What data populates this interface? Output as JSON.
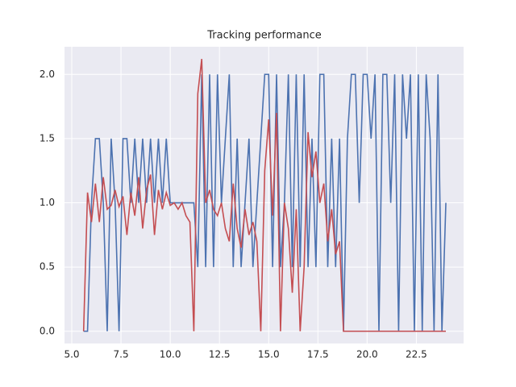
{
  "chart_data": {
    "type": "line",
    "title": "Tracking performance",
    "x": [
      5.6,
      5.8,
      6.0,
      6.2,
      6.4,
      6.6,
      6.8,
      7.0,
      7.2,
      7.4,
      7.6,
      7.8,
      8.0,
      8.2,
      8.4,
      8.6,
      8.8,
      9.0,
      9.2,
      9.4,
      9.6,
      9.8,
      10.0,
      10.2,
      10.4,
      10.6,
      10.8,
      11.0,
      11.2,
      11.4,
      11.6,
      11.8,
      12.0,
      12.2,
      12.4,
      12.6,
      12.8,
      13.0,
      13.2,
      13.4,
      13.6,
      13.8,
      14.0,
      14.2,
      14.4,
      14.6,
      14.8,
      15.0,
      15.2,
      15.4,
      15.6,
      15.8,
      16.0,
      16.2,
      16.4,
      16.6,
      16.8,
      17.0,
      17.2,
      17.4,
      17.6,
      17.8,
      18.0,
      18.2,
      18.4,
      18.6,
      18.8,
      19.0,
      19.2,
      19.4,
      19.6,
      19.8,
      20.0,
      20.2,
      20.4,
      20.6,
      20.8,
      21.0,
      21.2,
      21.4,
      21.6,
      21.8,
      22.0,
      22.2,
      22.4,
      22.6,
      22.8,
      23.0,
      23.2,
      23.4,
      23.6,
      23.8,
      24.0
    ],
    "series": [
      {
        "color": "#4c72b0",
        "values": [
          0,
          0,
          1,
          1.5,
          1.5,
          1,
          0,
          1.5,
          1,
          0,
          1.5,
          1.5,
          1,
          1.5,
          1,
          1.5,
          1,
          1.5,
          1,
          1.5,
          1,
          1.5,
          1,
          1,
          1,
          1,
          1,
          1,
          1,
          0.5,
          2,
          0.5,
          2,
          0.5,
          2,
          1,
          1.5,
          2,
          0.5,
          1.5,
          0.5,
          1,
          1.5,
          0.5,
          1,
          1.5,
          2,
          2,
          0.5,
          2,
          0.5,
          1,
          2,
          0.5,
          2,
          0.5,
          2,
          0.5,
          1.5,
          0.5,
          2,
          2,
          0.5,
          1.5,
          0.5,
          1.5,
          0,
          1.5,
          2,
          2,
          1,
          2,
          2,
          1.5,
          2,
          0,
          2,
          2,
          1,
          2,
          0,
          2,
          1.5,
          2,
          0,
          2,
          0,
          2,
          1.5,
          0,
          2,
          0,
          1
        ]
      },
      {
        "color": "#c44e52",
        "values": [
          0,
          1.08,
          0.85,
          1.15,
          0.85,
          1.2,
          0.95,
          0.98,
          1.1,
          0.97,
          1.05,
          0.75,
          1.08,
          0.9,
          1.2,
          0.8,
          1.1,
          1.22,
          0.75,
          1.1,
          0.95,
          1.08,
          0.98,
          1,
          0.95,
          1,
          0.9,
          0.85,
          0,
          1.85,
          2.12,
          1,
          1.1,
          0.95,
          0.9,
          1,
          0.8,
          0.7,
          1.15,
          0.8,
          0.65,
          0.95,
          0.75,
          0.85,
          0.7,
          0,
          1.25,
          1.65,
          0.9,
          1.7,
          0,
          1,
          0.8,
          0.3,
          0.95,
          0,
          0.5,
          1.55,
          1.2,
          1.4,
          1,
          1.15,
          0.7,
          0.95,
          0.6,
          0.7,
          0,
          0,
          0,
          0,
          0,
          0,
          0,
          0,
          0,
          0,
          0,
          0,
          0,
          0,
          0,
          0,
          0,
          0,
          0,
          0,
          0,
          0,
          0,
          0,
          0,
          0,
          0
        ]
      }
    ],
    "xlim": [
      4.63,
      24.9
    ],
    "ylim": [
      -0.095,
      2.215
    ],
    "xticks": [
      {
        "value": 5,
        "label": "5.0"
      },
      7.5,
      {
        "value": 10,
        "label": "10.0"
      },
      12.5,
      {
        "value": 15,
        "label": "15.0"
      },
      17.5,
      {
        "value": 20,
        "label": "20.0"
      },
      22.5
    ],
    "yticks": [
      {
        "value": 0,
        "label": "0.0"
      },
      0.5,
      {
        "value": 1,
        "label": "1.0"
      },
      1.5,
      {
        "value": 2,
        "label": "2.0"
      }
    ],
    "grid": true
  }
}
